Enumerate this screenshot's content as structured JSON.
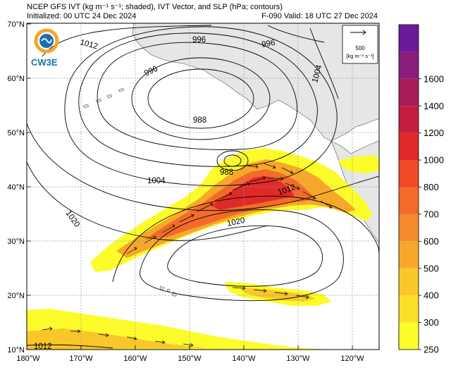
{
  "header": {
    "title_line1": "NCEP GFS IVT (kg m⁻¹ s⁻¹; shaded), IVT Vector, and SLP (hPa; contours)",
    "title_line2": "Initialized: 00 UTC 24 Dec 2024",
    "forecast_label": "F-090  Valid: 18 UTC 27 Dec 2024"
  },
  "logo": {
    "text": "CW3E"
  },
  "reference_vector": {
    "value": "500",
    "unit": "[kg m⁻¹ s⁻¹]"
  },
  "axes": {
    "lat_labels": [
      "70°N",
      "60°N",
      "50°N",
      "40°N",
      "30°N",
      "20°N",
      "10°N"
    ],
    "lon_labels": [
      "180°W",
      "170°W",
      "160°W",
      "150°W",
      "140°W",
      "130°W",
      "120°W"
    ]
  },
  "slp_contour_labels": [
    "1012",
    "996",
    "996",
    "1004",
    "996",
    "988",
    "988",
    "1004",
    "1012",
    "1020",
    "1020",
    "1012"
  ],
  "colorbar": {
    "ticks": [
      "250",
      "300",
      "400",
      "500",
      "600",
      "700",
      "800",
      "1000",
      "1200",
      "1400",
      "1600"
    ],
    "colors": [
      "#fcfc2a",
      "#fcdf28",
      "#f9c72a",
      "#f7a82a",
      "#f48c2b",
      "#f26b2a",
      "#ef4926",
      "#e02a2a",
      "#c41e3f",
      "#a61d57",
      "#8a1d7a",
      "#6a1b9a"
    ]
  },
  "colors": {
    "land": "#e6e6e6",
    "contour": "#000000",
    "grid": "#999999"
  }
}
